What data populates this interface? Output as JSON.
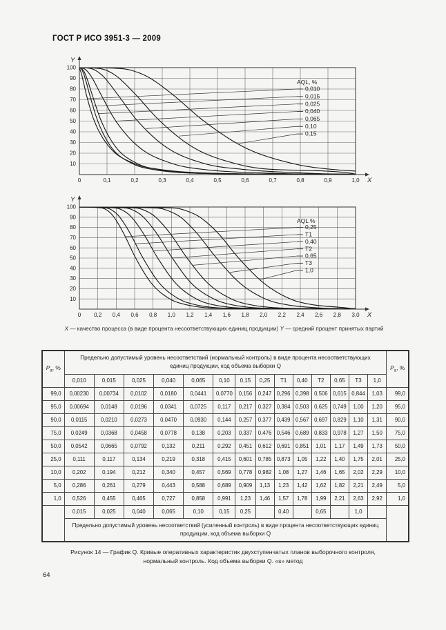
{
  "page": {
    "header_title": "ГОСТ Р ИСО 3951-3 — 2009",
    "page_number": "64",
    "axis_note": {
      "x_var": "X",
      "x_text": " — качество процесса (в виде процента несоответствующих единиц продукции)  ",
      "y_var": "Y",
      "y_text": " — средний процент принятых партий"
    },
    "figure_caption_line1": "Рисунок 14 — График Q. Кривые оперативных характеристик двухступенчатых планов выборочного контроля,",
    "figure_caption_line2": "нормальный контроль. Код объема выборки Q. «s» метод"
  },
  "colors": {
    "page_bg": "#f5f5f3",
    "ink": "#1f1f1f",
    "grid": "#666666",
    "curve": "#1c1c1c",
    "table_border": "#4a4a4a"
  },
  "chart_data": [
    {
      "type": "line",
      "name": "oc-normal-low-aql",
      "legend_title": "AQL, %",
      "xlabel": "X",
      "ylabel": "Y",
      "xlim": [
        0,
        1.0
      ],
      "ylim": [
        0,
        100
      ],
      "xtick_labels": [
        "0",
        "0,1",
        "0,2",
        "0,3",
        "0,4",
        "0,5",
        "0,6",
        "0,7",
        "0,8",
        "0,9",
        "1,0"
      ],
      "ytick_labels": [
        "10",
        "20",
        "30",
        "40",
        "50",
        "60",
        "70",
        "80",
        "90",
        "100"
      ],
      "grid": true,
      "legend_position": "right-inside",
      "pa_levels": [
        99,
        95,
        90,
        75,
        50,
        25,
        10,
        5,
        1
      ],
      "series": [
        {
          "name": "0,010",
          "x_at_pa": [
            0.0023,
            0.00694,
            0.0115,
            0.0249,
            0.0542,
            0.111,
            0.202,
            0.286,
            0.526
          ]
        },
        {
          "name": "0,015",
          "x_at_pa": [
            0.00734,
            0.0148,
            0.021,
            0.0368,
            0.0665,
            0.117,
            0.194,
            0.261,
            0.455
          ]
        },
        {
          "name": "0,025",
          "x_at_pa": [
            0.0102,
            0.0196,
            0.0273,
            0.0458,
            0.0792,
            0.134,
            0.212,
            0.279,
            0.465
          ]
        },
        {
          "name": "0,040",
          "x_at_pa": [
            0.018,
            0.0341,
            0.047,
            0.0778,
            0.132,
            0.219,
            0.34,
            0.443,
            0.727
          ]
        },
        {
          "name": "0,065",
          "x_at_pa": [
            0.0441,
            0.0725,
            0.093,
            0.138,
            0.211,
            0.318,
            0.457,
            0.588,
            0.858
          ]
        },
        {
          "name": "0,10",
          "x_at_pa": [
            0.077,
            0.117,
            0.144,
            0.203,
            0.292,
            0.415,
            0.569,
            0.689,
            0.991
          ]
        },
        {
          "name": "0,15",
          "x_at_pa": [
            0.156,
            0.217,
            0.257,
            0.337,
            0.451,
            0.601,
            0.778,
            0.909,
            1.23
          ]
        }
      ]
    },
    {
      "type": "line",
      "name": "oc-normal-high-aql",
      "legend_title": "AQL %",
      "xlabel": "X",
      "ylabel": "Y",
      "xlim": [
        0,
        3.0
      ],
      "ylim": [
        0,
        100
      ],
      "xtick_labels": [
        "0",
        "0,2",
        "0,4",
        "0,6",
        "0,8",
        "1,0",
        "1,2",
        "1,4",
        "1,6",
        "1,8",
        "2,0",
        "2,2",
        "2,4",
        "2,6",
        "2,8",
        "3,0"
      ],
      "ytick_labels": [
        "10",
        "20",
        "30",
        "40",
        "50",
        "60",
        "70",
        "80",
        "90",
        "100"
      ],
      "grid": true,
      "legend_position": "right-inside",
      "pa_levels": [
        99,
        95,
        90,
        75,
        50,
        25,
        10,
        5,
        1
      ],
      "series": [
        {
          "name": "0,25",
          "x_at_pa": [
            0.247,
            0.327,
            0.377,
            0.476,
            0.612,
            0.785,
            0.982,
            1.13,
            1.46
          ]
        },
        {
          "name": "T1",
          "x_at_pa": [
            0.296,
            0.384,
            0.439,
            0.546,
            0.691,
            0.873,
            1.08,
            1.23,
            1.57
          ]
        },
        {
          "name": "0,40",
          "x_at_pa": [
            0.398,
            0.503,
            0.567,
            0.689,
            0.851,
            1.05,
            1.27,
            1.42,
            1.78
          ]
        },
        {
          "name": "T2",
          "x_at_pa": [
            0.506,
            0.625,
            0.697,
            0.833,
            1.01,
            1.22,
            1.46,
            1.62,
            1.99
          ]
        },
        {
          "name": "0,65",
          "x_at_pa": [
            0.615,
            0.749,
            0.829,
            0.978,
            1.17,
            1.4,
            1.65,
            1.82,
            2.21
          ]
        },
        {
          "name": "T3",
          "x_at_pa": [
            0.844,
            1.0,
            1.1,
            1.27,
            1.49,
            1.75,
            2.02,
            2.21,
            2.63
          ]
        },
        {
          "name": "1,0",
          "x_at_pa": [
            1.03,
            1.2,
            1.31,
            1.5,
            1.73,
            2.01,
            2.29,
            2.49,
            2.92
          ]
        }
      ]
    }
  ],
  "table": {
    "pa_symbol": "P",
    "pa_subscript": "a",
    "pa_unit": ", %",
    "normal_note": "Предельно допустимый уровень несоответствий (нормальный контроль) в виде процента несоответствующих единиц продукции, код объема выборки Q",
    "tightened_note": "Предельно допустимый уровень несоответствий (усиленный контроль) в виде процента несоответствующих единиц продукции, код объема выборки Q",
    "columns": [
      "0,010",
      "0,015",
      "0,025",
      "0,040",
      "0,065",
      "0,10",
      "0,15",
      "0,25",
      "T1",
      "0,40",
      "T2",
      "0,65",
      "T3",
      "1,0"
    ],
    "rows": [
      {
        "pa": "99,0",
        "values": [
          "0,00230",
          "0,00734",
          "0,0102",
          "0,0180",
          "0,0441",
          "0,0770",
          "0,156",
          "0,247",
          "0,296",
          "0,398",
          "0,506",
          "0,615",
          "0,844",
          "1,03"
        ]
      },
      {
        "pa": "95,0",
        "values": [
          "0,00694",
          "0,0148",
          "0,0196",
          "0,0341",
          "0,0725",
          "0,117",
          "0,217",
          "0,327",
          "0,384",
          "0,503",
          "0,625",
          "0,749",
          "1,00",
          "1,20"
        ]
      },
      {
        "pa": "90,0",
        "values": [
          "0,0115",
          "0,0210",
          "0,0273",
          "0,0470",
          "0,0930",
          "0,144",
          "0,257",
          "0,377",
          "0,439",
          "0,567",
          "0,697",
          "0,829",
          "1,10",
          "1,31"
        ]
      },
      {
        "pa": "75,0",
        "values": [
          "0,0249",
          "0,0368",
          "0,0458",
          "0,0778",
          "0,138",
          "0,203",
          "0,337",
          "0,476",
          "0,546",
          "0,689",
          "0,833",
          "0,978",
          "1,27",
          "1,50"
        ]
      },
      {
        "pa": "50,0",
        "values": [
          "0,0542",
          "0,0665",
          "0,0792",
          "0,132",
          "0,211",
          "0,292",
          "0,451",
          "0,612",
          "0,691",
          "0,851",
          "1,01",
          "1,17",
          "1,49",
          "1,73"
        ]
      },
      {
        "pa": "25,0",
        "values": [
          "0,111",
          "0,117",
          "0,134",
          "0,219",
          "0,318",
          "0,415",
          "0,601",
          "0,785",
          "0,873",
          "1,05",
          "1,22",
          "1,40",
          "1,75",
          "2,01"
        ]
      },
      {
        "pa": "10,0",
        "values": [
          "0,202",
          "0,194",
          "0,212",
          "0,340",
          "0,457",
          "0,569",
          "0,778",
          "0,982",
          "1,08",
          "1,27",
          "1,46",
          "1,65",
          "2,02",
          "2,29"
        ]
      },
      {
        "pa": "5,0",
        "values": [
          "0,286",
          "0,261",
          "0,279",
          "0,443",
          "0,588",
          "0,689",
          "0,909",
          "1,13",
          "1,23",
          "1,42",
          "1,62",
          "1,82",
          "2,21",
          "2,49"
        ]
      },
      {
        "pa": "1,0",
        "values": [
          "0,526",
          "0,455",
          "0,465",
          "0,727",
          "0,858",
          "0,991",
          "1,23",
          "1,46",
          "1,57",
          "1,78",
          "1,99",
          "2,21",
          "2,63",
          "2,92"
        ]
      }
    ],
    "tightened_row": [
      "0,015",
      "0,025",
      "0,040",
      "0,065",
      "0,10",
      "0,15",
      "0,25",
      "",
      "0,40",
      "",
      "0,65",
      "",
      "1,0",
      ""
    ]
  }
}
